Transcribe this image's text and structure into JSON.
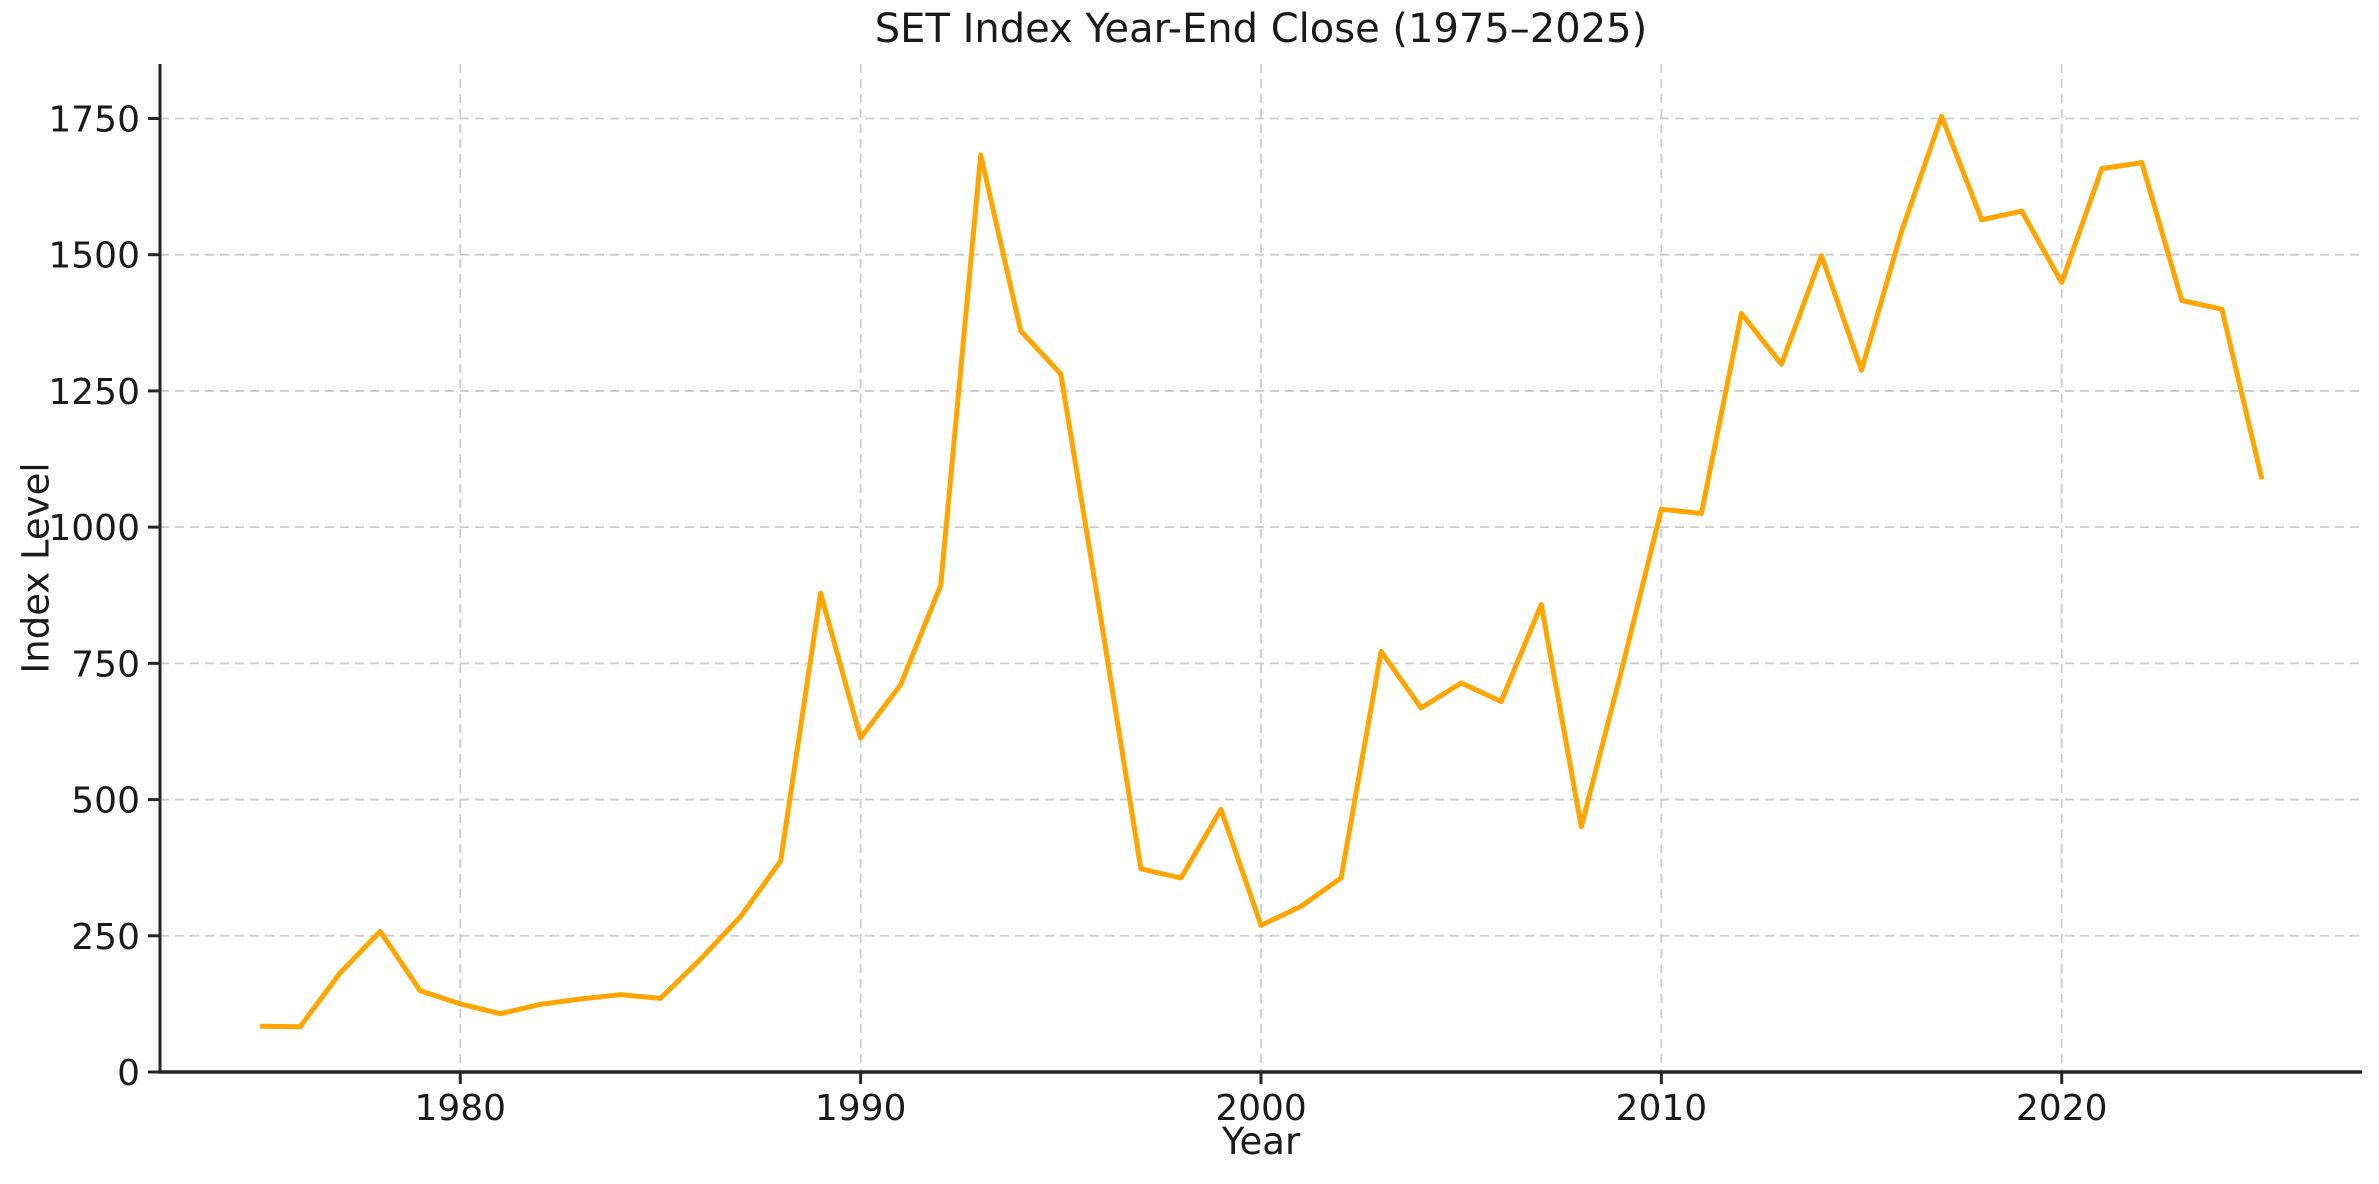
{
  "figure": {
    "title": "SET Index Year-End Close (1975–2025)",
    "xlabel": "Year",
    "ylabel": "Index Level"
  },
  "chart_data": {
    "type": "line",
    "title": "SET Index Year-End Close (1975–2025)",
    "xlabel": "Year",
    "ylabel": "Index Level",
    "x": [
      1975,
      1976,
      1977,
      1978,
      1979,
      1980,
      1981,
      1982,
      1983,
      1984,
      1985,
      1986,
      1987,
      1988,
      1989,
      1990,
      1991,
      1992,
      1993,
      1994,
      1995,
      1996,
      1997,
      1998,
      1999,
      2000,
      2001,
      2002,
      2003,
      2004,
      2005,
      2006,
      2007,
      2008,
      2009,
      2010,
      2011,
      2012,
      2013,
      2014,
      2015,
      2016,
      2017,
      2018,
      2019,
      2020,
      2021,
      2022,
      2023,
      2024,
      2025
    ],
    "series": [
      {
        "name": "SET Index year-end close",
        "values": [
          84,
          83,
          182,
          258,
          149,
          125,
          107,
          124,
          134,
          142,
          135,
          207,
          285,
          387,
          879,
          613,
          711,
          893,
          1683,
          1360,
          1281,
          832,
          373,
          356,
          482,
          269,
          304,
          356,
          772,
          668,
          714,
          680,
          858,
          450,
          735,
          1033,
          1025,
          1392,
          1299,
          1498,
          1288,
          1543,
          1754,
          1564,
          1580,
          1449,
          1658,
          1669,
          1416,
          1400,
          1088
        ]
      }
    ],
    "xlim": [
      1972.5,
      2027.5
    ],
    "ylim": [
      0,
      1850
    ],
    "xticks": [
      1980,
      1990,
      2000,
      2010,
      2020
    ],
    "yticks": [
      0,
      250,
      500,
      750,
      1000,
      1250,
      1500,
      1750
    ],
    "grid": true,
    "grid_style": "dashed",
    "legend": false,
    "colors": {
      "line": "#FFA500",
      "grid": "#cccccc",
      "spine": "#262626",
      "text": "#1a1a1a",
      "background": "#ffffff"
    }
  }
}
